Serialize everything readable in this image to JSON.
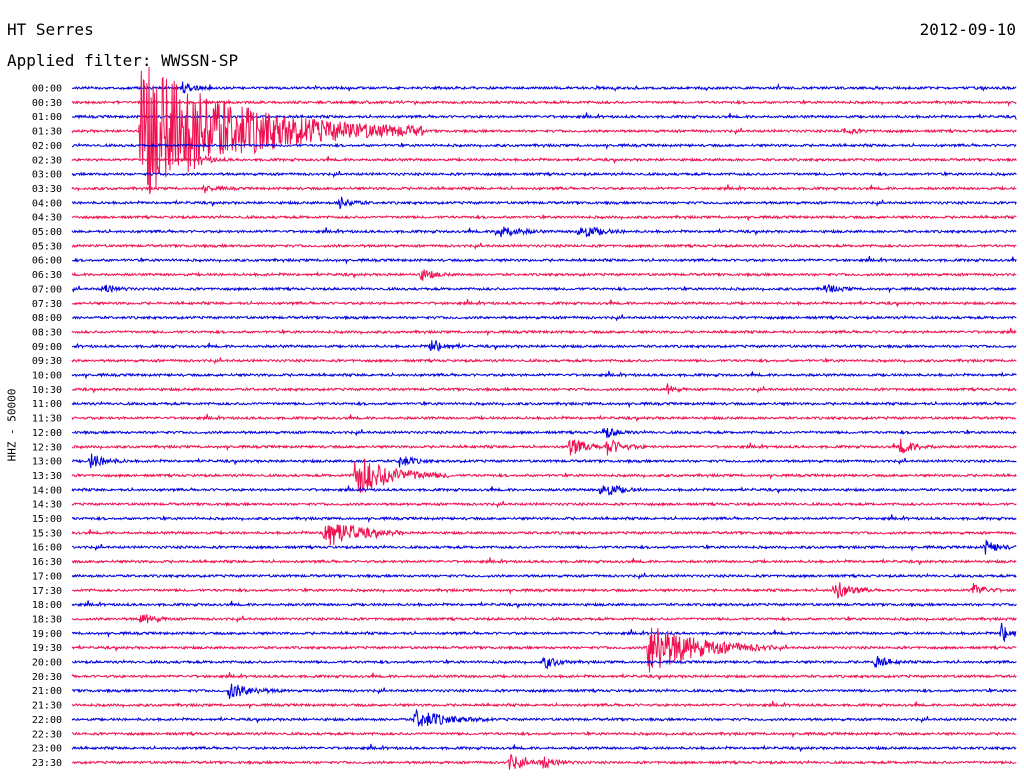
{
  "header": {
    "station": "HT Serres",
    "date": "2012-09-10",
    "filter_label": "Applied filter: WWSSN-SP"
  },
  "axis": {
    "ylabel": "HHZ - 50000"
  },
  "colors": {
    "trace_a": "#0000e0",
    "trace_b": "#f01050",
    "text": "#000000",
    "background": "#ffffff"
  },
  "chart_data": {
    "type": "line",
    "subtype": "helicorder",
    "title": "HT Serres",
    "date": "2012-09-10",
    "ylabel": "HHZ - 50000",
    "row_labels": [
      "00:00",
      "00:30",
      "01:00",
      "01:30",
      "02:00",
      "02:30",
      "03:00",
      "03:30",
      "04:00",
      "04:30",
      "05:00",
      "05:30",
      "06:00",
      "06:30",
      "07:00",
      "07:30",
      "08:00",
      "08:30",
      "09:00",
      "09:30",
      "10:00",
      "10:30",
      "11:00",
      "11:30",
      "12:00",
      "12:30",
      "13:00",
      "13:30",
      "14:00",
      "14:30",
      "15:00",
      "15:30",
      "16:00",
      "16:30",
      "17:00",
      "17:30",
      "18:00",
      "18:30",
      "19:00",
      "19:30",
      "20:00",
      "20:30",
      "21:00",
      "21:30",
      "22:00",
      "22:30",
      "23:00",
      "23:30"
    ],
    "minutes_per_row": 30,
    "series_colors": [
      "#0000e0",
      "#f01050"
    ],
    "events": [
      {
        "row": "00:00",
        "minute": 3.5,
        "amplitude": 6,
        "duration": 1
      },
      {
        "row": "01:30",
        "minute": 2.2,
        "amplitude": 70,
        "duration": 9
      },
      {
        "row": "01:30",
        "minute": 24.5,
        "amplitude": 3,
        "duration": 1
      },
      {
        "row": "02:30",
        "minute": 4.1,
        "amplitude": 4,
        "duration": 1
      },
      {
        "row": "03:30",
        "minute": 4.2,
        "amplitude": 3,
        "duration": 1
      },
      {
        "row": "04:00",
        "minute": 8.5,
        "amplitude": 6,
        "duration": 1
      },
      {
        "row": "05:00",
        "minute": 13.5,
        "amplitude": 8,
        "duration": 1.5
      },
      {
        "row": "05:00",
        "minute": 16.1,
        "amplitude": 8,
        "duration": 1.5
      },
      {
        "row": "06:30",
        "minute": 11.1,
        "amplitude": 6,
        "duration": 1
      },
      {
        "row": "07:00",
        "minute": 1.0,
        "amplitude": 5,
        "duration": 1
      },
      {
        "row": "07:00",
        "minute": 23.9,
        "amplitude": 5,
        "duration": 1
      },
      {
        "row": "09:00",
        "minute": 11.4,
        "amplitude": 8,
        "duration": 1
      },
      {
        "row": "10:30",
        "minute": 18.9,
        "amplitude": 5,
        "duration": 0.6
      },
      {
        "row": "12:00",
        "minute": 16.9,
        "amplitude": 6,
        "duration": 1
      },
      {
        "row": "12:30",
        "minute": 15.8,
        "amplitude": 9,
        "duration": 1.5
      },
      {
        "row": "12:30",
        "minute": 17.0,
        "amplitude": 8,
        "duration": 1.3
      },
      {
        "row": "12:30",
        "minute": 26.3,
        "amplitude": 7,
        "duration": 1.3
      },
      {
        "row": "13:00",
        "minute": 0.6,
        "amplitude": 8,
        "duration": 1.2
      },
      {
        "row": "13:00",
        "minute": 10.4,
        "amplitude": 7,
        "duration": 1
      },
      {
        "row": "13:30",
        "minute": 9.0,
        "amplitude": 22,
        "duration": 3
      },
      {
        "row": "14:00",
        "minute": 16.8,
        "amplitude": 9,
        "duration": 1.3
      },
      {
        "row": "15:30",
        "minute": 8.0,
        "amplitude": 18,
        "duration": 2.5
      },
      {
        "row": "16:00",
        "minute": 29.0,
        "amplitude": 7,
        "duration": 1
      },
      {
        "row": "17:30",
        "minute": 24.2,
        "amplitude": 12,
        "duration": 1.2
      },
      {
        "row": "17:30",
        "minute": 28.6,
        "amplitude": 7,
        "duration": 1
      },
      {
        "row": "18:30",
        "minute": 2.2,
        "amplitude": 6,
        "duration": 1
      },
      {
        "row": "19:00",
        "minute": 29.5,
        "amplitude": 10,
        "duration": 1
      },
      {
        "row": "19:30",
        "minute": 18.3,
        "amplitude": 28,
        "duration": 4
      },
      {
        "row": "20:00",
        "minute": 15.0,
        "amplitude": 7,
        "duration": 1
      },
      {
        "row": "20:00",
        "minute": 25.5,
        "amplitude": 7,
        "duration": 1
      },
      {
        "row": "21:00",
        "minute": 5.0,
        "amplitude": 8,
        "duration": 1.8
      },
      {
        "row": "22:00",
        "minute": 10.9,
        "amplitude": 10,
        "duration": 2.5
      },
      {
        "row": "23:30",
        "minute": 13.9,
        "amplitude": 8,
        "duration": 1.2
      },
      {
        "row": "23:30",
        "minute": 14.9,
        "amplitude": 6,
        "duration": 1.3
      }
    ]
  }
}
